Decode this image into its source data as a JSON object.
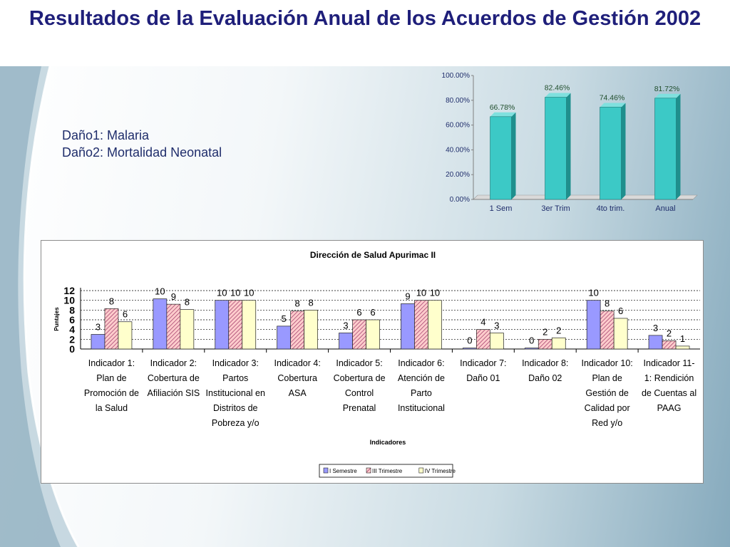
{
  "slide": {
    "title": "Resultados de la Evaluación Anual de los Acuerdos de Gestión 2002",
    "note_lines": [
      "Daño1: Malaria",
      "Daño2: Mortalidad Neonatal"
    ]
  },
  "colors": {
    "title": "#1f1f7a",
    "bar_teal": "#3cc9c6",
    "bar_teal_dark": "#1f8f8d",
    "series1": "#9999ff",
    "series2": "#ffcccc",
    "series3": "#ffffcc",
    "series2_hatch": "#993366"
  },
  "chart_data": [
    {
      "type": "bar",
      "title": "",
      "categories": [
        "1 Sem",
        "3er Trim",
        "4to trim.",
        "Anual"
      ],
      "values": [
        66.78,
        82.46,
        74.46,
        81.72
      ],
      "value_labels": [
        "66.78%",
        "82.46%",
        "74.46%",
        "81.72%"
      ],
      "ylim": [
        0,
        100
      ],
      "yticks": [
        "0.00%",
        "20.00%",
        "40.00%",
        "60.00%",
        "80.00%",
        "100.00%"
      ],
      "xlabel": "",
      "ylabel": "",
      "grid": false
    },
    {
      "type": "bar",
      "title": "Dirección de Salud Apurimac II",
      "xlabel": "Indicadores",
      "ylabel": "Puntajes",
      "ylim": [
        0,
        12
      ],
      "yticks": [
        "0",
        "2",
        "4",
        "6",
        "8",
        "10",
        "12"
      ],
      "grid": true,
      "legend_position": "bottom",
      "categories": [
        [
          "Indicador 1:",
          "Plan de",
          "Promoción de",
          "la Salud"
        ],
        [
          "Indicador 2:",
          "Cobertura de",
          "Afiliación SIS"
        ],
        [
          "Indicador 3:",
          "Partos",
          "Institucional en",
          "Distritos de",
          "Pobreza y/o"
        ],
        [
          "Indicador 4:",
          "Cobertura",
          "ASA"
        ],
        [
          "Indicador 5:",
          "Cobertura de",
          "Control",
          "Prenatal"
        ],
        [
          "Indicador 6:",
          "Atención de",
          "Parto",
          "Institucional"
        ],
        [
          "Indicador 7:",
          "Daño 01"
        ],
        [
          "Indicador 8:",
          "Daño 02"
        ],
        [
          "Indicador 10:",
          "Plan de",
          "Gestión de",
          "Calidad por",
          "Red y/o"
        ],
        [
          "Indicador 11-",
          "1: Rendición",
          "de Cuentas al",
          "PAAG"
        ]
      ],
      "series": [
        {
          "name": "I Semestre",
          "values": [
            3,
            10.3,
            10,
            4.7,
            3.3,
            9.3,
            0.2,
            0.2,
            10,
            2.8
          ],
          "labels": [
            "3",
            "10",
            "10",
            "5",
            "3",
            "9",
            "0",
            "0",
            "10",
            "3"
          ]
        },
        {
          "name": "III Trimestre",
          "values": [
            8.3,
            9.2,
            10,
            7.8,
            6,
            10,
            4,
            2,
            7.8,
            1.7
          ],
          "labels": [
            "8",
            "9",
            "10",
            "8",
            "6",
            "10",
            "4",
            "2",
            "8",
            "2"
          ]
        },
        {
          "name": "IV Trimestre",
          "values": [
            5.6,
            8.1,
            10,
            8,
            6,
            10,
            3.3,
            2.3,
            6.3,
            0.6
          ],
          "labels": [
            "6",
            "8",
            "10",
            "8",
            "6",
            "10",
            "3",
            "2",
            "6",
            "1"
          ]
        }
      ]
    }
  ]
}
